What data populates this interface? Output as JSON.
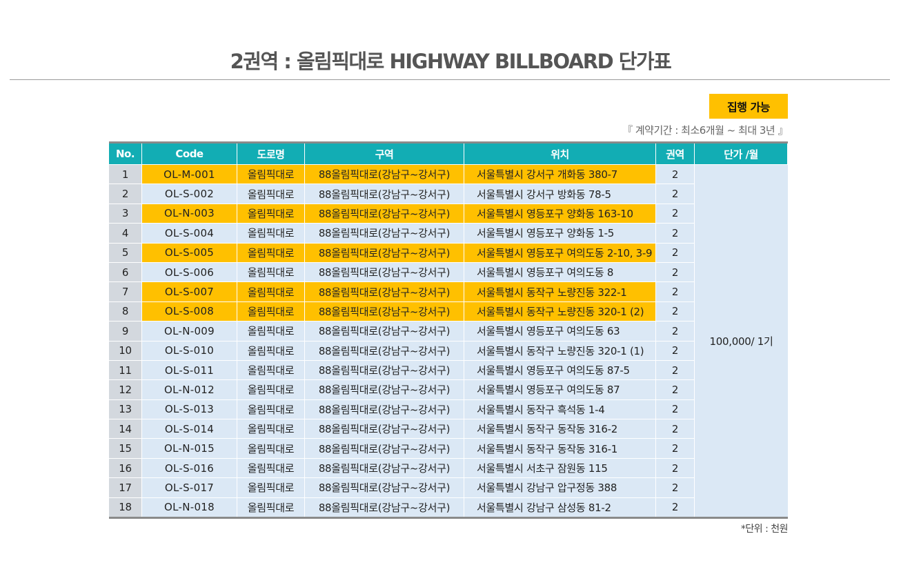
{
  "header": {
    "title": "2권역 : 올림픽대로 HIGHWAY BILLBOARD 단가표"
  },
  "badge": {
    "label": "집행 가능",
    "color": "#ffc000"
  },
  "contract_note": "『 계약기간 : 최소6개월 ~ 최대 3년 』",
  "table": {
    "columns": [
      "No.",
      "Code",
      "도로명",
      "구역",
      "위치",
      "권역",
      "단가 /월"
    ],
    "header_color": "#12adb4",
    "price": "100,000/ 1기",
    "rows": [
      {
        "no": "1",
        "code": "OL-M-001",
        "road": "올림픽대로",
        "zone": "88올림픽대로(강남구~강서구)",
        "location": "서울특별시 강서구 개화동 380-7",
        "region": "2",
        "available": true
      },
      {
        "no": "2",
        "code": "OL-S-002",
        "road": "올림픽대로",
        "zone": "88올림픽대로(강남구~강서구)",
        "location": "서울특별시 강서구 방화동 78-5",
        "region": "2",
        "available": false
      },
      {
        "no": "3",
        "code": "OL-N-003",
        "road": "올림픽대로",
        "zone": "88올림픽대로(강남구~강서구)",
        "location": "서울특별시 영등포구 양화동 163-10",
        "region": "2",
        "available": true
      },
      {
        "no": "4",
        "code": "OL-S-004",
        "road": "올림픽대로",
        "zone": "88올림픽대로(강남구~강서구)",
        "location": "서울특별시 영등포구 양화동 1-5",
        "region": "2",
        "available": false
      },
      {
        "no": "5",
        "code": "OL-S-005",
        "road": "올림픽대로",
        "zone": "88올림픽대로(강남구~강서구)",
        "location": "서울특별시 영등포구 여의도동 2-10, 3-9",
        "region": "2",
        "available": true
      },
      {
        "no": "6",
        "code": "OL-S-006",
        "road": "올림픽대로",
        "zone": "88올림픽대로(강남구~강서구)",
        "location": "서울특별시 영등포구 여의도동 8",
        "region": "2",
        "available": false
      },
      {
        "no": "7",
        "code": "OL-S-007",
        "road": "올림픽대로",
        "zone": "88올림픽대로(강남구~강서구)",
        "location": "서울특별시 동작구 노량진동 322-1",
        "region": "2",
        "available": true
      },
      {
        "no": "8",
        "code": "OL-S-008",
        "road": "올림픽대로",
        "zone": "88올림픽대로(강남구~강서구)",
        "location": "서울특별시 동작구 노량진동 320-1 (2)",
        "region": "2",
        "available": true
      },
      {
        "no": "9",
        "code": "OL-N-009",
        "road": "올림픽대로",
        "zone": "88올림픽대로(강남구~강서구)",
        "location": "서울특별시 영등포구 여의도동 63",
        "region": "2",
        "available": false
      },
      {
        "no": "10",
        "code": "OL-S-010",
        "road": "올림픽대로",
        "zone": "88올림픽대로(강남구~강서구)",
        "location": "서울특별시 동작구 노량진동 320-1 (1)",
        "region": "2",
        "available": false
      },
      {
        "no": "11",
        "code": "OL-S-011",
        "road": "올림픽대로",
        "zone": "88올림픽대로(강남구~강서구)",
        "location": "서울특별시 영등포구 여의도동 87-5",
        "region": "2",
        "available": false
      },
      {
        "no": "12",
        "code": "OL-N-012",
        "road": "올림픽대로",
        "zone": "88올림픽대로(강남구~강서구)",
        "location": "서울특별시 영등포구 여의도동 87",
        "region": "2",
        "available": false
      },
      {
        "no": "13",
        "code": "OL-S-013",
        "road": "올림픽대로",
        "zone": "88올림픽대로(강남구~강서구)",
        "location": "서울특별시 동작구 흑석동 1-4",
        "region": "2",
        "available": false
      },
      {
        "no": "14",
        "code": "OL-S-014",
        "road": "올림픽대로",
        "zone": "88올림픽대로(강남구~강서구)",
        "location": "서울특별시 동작구 동작동 316-2",
        "region": "2",
        "available": false
      },
      {
        "no": "15",
        "code": "OL-N-015",
        "road": "올림픽대로",
        "zone": "88올림픽대로(강남구~강서구)",
        "location": "서울특별시 동작구 동작동 316-1",
        "region": "2",
        "available": false
      },
      {
        "no": "16",
        "code": "OL-S-016",
        "road": "올림픽대로",
        "zone": "88올림픽대로(강남구~강서구)",
        "location": "서울특별시 서초구 잠원동 115",
        "region": "2",
        "available": false
      },
      {
        "no": "17",
        "code": "OL-S-017",
        "road": "올림픽대로",
        "zone": "88올림픽대로(강남구~강서구)",
        "location": "서울특별시 강남구 압구정동 388",
        "region": "2",
        "available": false
      },
      {
        "no": "18",
        "code": "OL-N-018",
        "road": "올림픽대로",
        "zone": "88올림픽대로(강남구~강서구)",
        "location": "서울특별시 강남구 삼성동 81-2",
        "region": "2",
        "available": false
      }
    ]
  },
  "unit_note": "*단위 : 천원"
}
